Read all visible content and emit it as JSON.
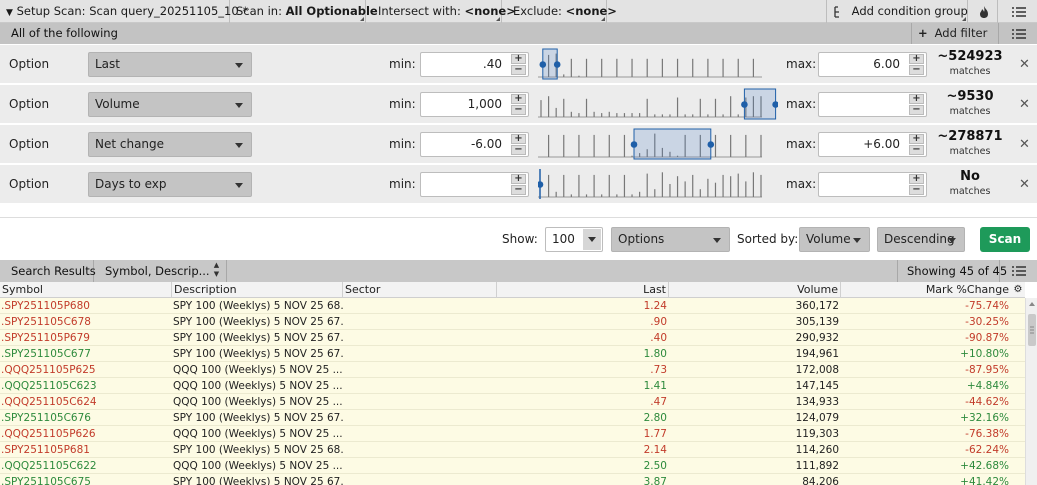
{
  "toolbar": {
    "setup_label": "Setup Scan: Scan query_20251105_10 *",
    "scan_in_prefix": "Scan in:",
    "scan_in_value": "All Optionable",
    "intersect_prefix": "Intersect with:",
    "intersect_value": "<none>",
    "exclude_prefix": "Exclude:",
    "exclude_value": "<none>",
    "add_condition_group": "Add condition group"
  },
  "filters_header": {
    "title": "All of the following",
    "add_filter": "Add filter"
  },
  "filters": [
    {
      "type": "Option",
      "field": "Last",
      "min_label": "min:",
      "min": ".40",
      "max_label": "max:",
      "max": "6.00",
      "count": "~524923",
      "matches_label": "matches",
      "histogram": [
        0,
        0.85,
        0.9,
        0.1,
        0.7,
        0.05,
        0.7,
        0,
        0.7,
        0,
        0.7,
        0,
        0.7,
        0,
        0.7,
        0,
        0.7,
        0,
        0.7,
        0,
        0.7,
        0,
        0.7,
        0,
        0.7,
        0,
        0.7,
        0,
        0.7,
        0
      ],
      "range": [
        0.02,
        0.08
      ]
    },
    {
      "type": "Option",
      "field": "Volume",
      "min_label": "min:",
      "min": "1,000",
      "max_label": "max:",
      "max": "",
      "count": "~9530",
      "matches_label": "matches",
      "histogram": [
        0.65,
        0.8,
        0.35,
        0.7,
        0.2,
        0.15,
        0.7,
        0.2,
        0.15,
        0.2,
        0.15,
        0.15,
        0.15,
        0.15,
        0.7,
        0.1,
        0.1,
        0.1,
        0.75,
        0.1,
        0.1,
        0.7,
        0.1,
        0.7,
        0.1,
        0.8,
        0.1,
        0.75,
        0.8,
        0.8
      ],
      "range": [
        0.86,
        0.99
      ]
    },
    {
      "type": "Option",
      "field": "Net change",
      "min_label": "min:",
      "min": "-6.00",
      "max_label": "max:",
      "max": "+6.00",
      "count": "~278871",
      "matches_label": "matches",
      "histogram": [
        0,
        0.85,
        0,
        0.85,
        0,
        0.85,
        0,
        0.85,
        0,
        0.85,
        0,
        0.85,
        0.05,
        0.15,
        0.3,
        0.9,
        0.35,
        0.2,
        0.05,
        0.85,
        0,
        0.85,
        0,
        0.85,
        0,
        0.85,
        0,
        0.85,
        0,
        0.85
      ],
      "range": [
        0.4,
        0.72
      ]
    },
    {
      "type": "Option",
      "field": "Days to exp",
      "min_label": "min:",
      "min": "",
      "max_label": "max:",
      "max": "",
      "count": "No",
      "matches_label": "matches",
      "histogram": [
        0,
        0.85,
        0.2,
        0.85,
        0.1,
        0.85,
        0.1,
        0.85,
        0.1,
        0.85,
        0.1,
        0.85,
        0.1,
        0.2,
        0.9,
        0.3,
        0.95,
        0.5,
        0.8,
        0.6,
        0.85,
        0.3,
        0.7,
        0.55,
        0.85,
        0.8,
        0.9,
        0.6,
        0.95,
        0.85
      ],
      "range": [
        0.0,
        0.0
      ]
    }
  ],
  "show": {
    "show_label": "Show:",
    "show_value": "100",
    "type_value": "Options",
    "sorted_label": "Sorted by:",
    "sort_field": "Volume",
    "sort_order": "Descending",
    "scan_button": "Scan"
  },
  "results": {
    "search_results": "Search Results",
    "symbol_desc": "Symbol, Descrip...",
    "showing": "Showing 45 of 45",
    "columns": [
      "Symbol",
      "Description",
      "Sector",
      "Last",
      "Volume",
      "Mark %Change"
    ],
    "rows": [
      {
        "symbol": ".SPY251105P680",
        "desc": "SPY 100 (Weeklys) 5 NOV 25 68...",
        "sector": "",
        "last": "1.24",
        "volume": "360,172",
        "change": "-75.74%",
        "dir": "neg"
      },
      {
        "symbol": ".SPY251105C678",
        "desc": "SPY 100 (Weeklys) 5 NOV 25 67...",
        "sector": "",
        "last": ".90",
        "volume": "305,139",
        "change": "-30.25%",
        "dir": "neg"
      },
      {
        "symbol": ".SPY251105P679",
        "desc": "SPY 100 (Weeklys) 5 NOV 25 67...",
        "sector": "",
        "last": ".40",
        "volume": "290,932",
        "change": "-90.87%",
        "dir": "neg"
      },
      {
        "symbol": ".SPY251105C677",
        "desc": "SPY 100 (Weeklys) 5 NOV 25 67...",
        "sector": "",
        "last": "1.80",
        "volume": "194,961",
        "change": "+10.80%",
        "dir": "pos"
      },
      {
        "symbol": ".QQQ251105P625",
        "desc": "QQQ 100 (Weeklys) 5 NOV 25 ...",
        "sector": "",
        "last": ".73",
        "volume": "172,008",
        "change": "-87.95%",
        "dir": "neg"
      },
      {
        "symbol": ".QQQ251105C623",
        "desc": "QQQ 100 (Weeklys) 5 NOV 25 ...",
        "sector": "",
        "last": "1.41",
        "volume": "147,145",
        "change": "+4.84%",
        "dir": "pos"
      },
      {
        "symbol": ".QQQ251105C624",
        "desc": "QQQ 100 (Weeklys) 5 NOV 25 ...",
        "sector": "",
        "last": ".47",
        "volume": "134,933",
        "change": "-44.62%",
        "dir": "neg"
      },
      {
        "symbol": ".SPY251105C676",
        "desc": "SPY 100 (Weeklys) 5 NOV 25 67...",
        "sector": "",
        "last": "2.80",
        "volume": "124,079",
        "change": "+32.16%",
        "dir": "pos"
      },
      {
        "symbol": ".QQQ251105P626",
        "desc": "QQQ 100 (Weeklys) 5 NOV 25 ...",
        "sector": "",
        "last": "1.77",
        "volume": "119,303",
        "change": "-76.38%",
        "dir": "neg"
      },
      {
        "symbol": ".SPY251105P681",
        "desc": "SPY 100 (Weeklys) 5 NOV 25 68...",
        "sector": "",
        "last": "2.14",
        "volume": "114,260",
        "change": "-62.24%",
        "dir": "neg"
      },
      {
        "symbol": ".QQQ251105C622",
        "desc": "QQQ 100 (Weeklys) 5 NOV 25 ...",
        "sector": "",
        "last": "2.50",
        "volume": "111,892",
        "change": "+42.68%",
        "dir": "pos"
      },
      {
        "symbol": ".SPY251105C675",
        "desc": "SPY 100 (Weeklys) 5 NOV 25 67...",
        "sector": "",
        "last": "3.87",
        "volume": "84,206",
        "change": "+41.42%",
        "dir": "pos"
      }
    ]
  },
  "colors": {
    "positive": "#2d8a3c",
    "negative": "#c23b2a",
    "scan_button": "#1e9a5a",
    "selection": "#1f5fa8",
    "row_bg": "#fdfbe4"
  },
  "icons": {
    "filter": "filter-icon",
    "flame": "flame-icon",
    "menu": "menu-icon",
    "close": "close-icon",
    "gear": "gear-icon"
  }
}
